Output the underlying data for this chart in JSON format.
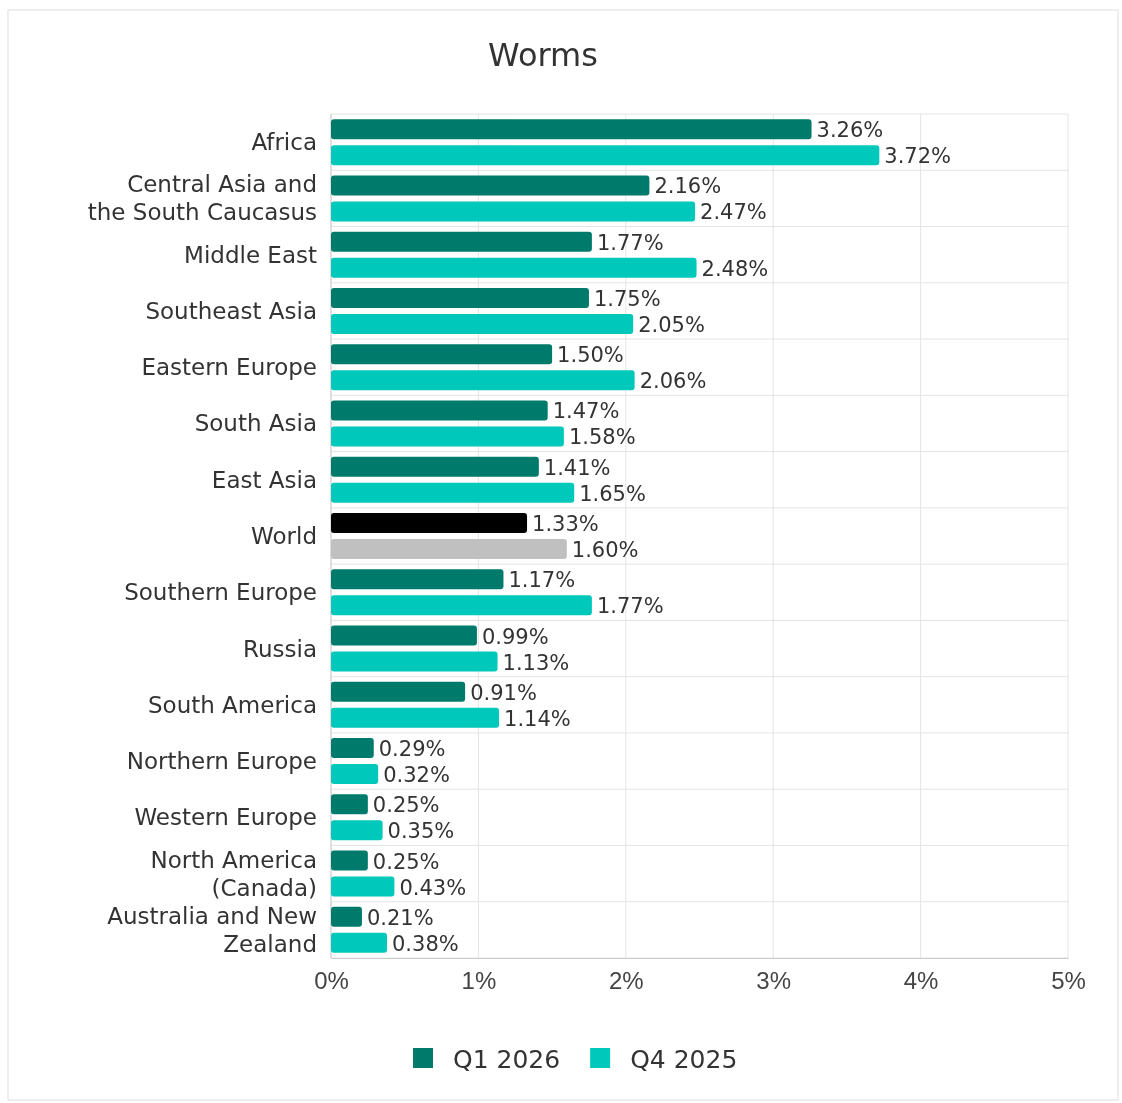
{
  "chart_data": {
    "type": "bar",
    "orientation": "horizontal",
    "title": "Worms",
    "categories": [
      "Africa",
      "Central Asia and the South Caucasus",
      "Middle East",
      "Southeast Asia",
      "Eastern Europe",
      "South Asia",
      "East Asia",
      "World",
      "Southern Europe",
      "Russia",
      "South America",
      "Northern Europe",
      "Western Europe",
      "North America (Canada)",
      "Australia and New Zealand"
    ],
    "series": [
      {
        "name": "Q1 2026",
        "color": "#007a6a",
        "colors": [
          "#007a6a",
          "#007a6a",
          "#007a6a",
          "#007a6a",
          "#007a6a",
          "#007a6a",
          "#007a6a",
          "#000000",
          "#007a6a",
          "#007a6a",
          "#007a6a",
          "#007a6a",
          "#007a6a",
          "#007a6a",
          "#007a6a"
        ],
        "values": [
          3.26,
          2.16,
          1.77,
          1.75,
          1.5,
          1.47,
          1.41,
          1.33,
          1.17,
          0.99,
          0.91,
          0.29,
          0.25,
          0.25,
          0.21
        ],
        "value_labels": [
          "3.26%",
          "2.16%",
          "1.77%",
          "1.75%",
          "1.50%",
          "1.47%",
          "1.41%",
          "1.33%",
          "1.17%",
          "0.99%",
          "0.91%",
          "0.29%",
          "0.25%",
          "0.25%",
          "0.21%"
        ]
      },
      {
        "name": "Q4 2025",
        "color": "#00c8bb",
        "colors": [
          "#00c8bb",
          "#00c8bb",
          "#00c8bb",
          "#00c8bb",
          "#00c8bb",
          "#00c8bb",
          "#00c8bb",
          "#c0c0c0",
          "#00c8bb",
          "#00c8bb",
          "#00c8bb",
          "#00c8bb",
          "#00c8bb",
          "#00c8bb",
          "#00c8bb"
        ],
        "values": [
          3.72,
          2.47,
          2.48,
          2.05,
          2.06,
          1.58,
          1.65,
          1.6,
          1.77,
          1.13,
          1.14,
          0.32,
          0.35,
          0.43,
          0.38
        ],
        "value_labels": [
          "3.72%",
          "2.47%",
          "2.48%",
          "2.05%",
          "2.06%",
          "1.58%",
          "1.65%",
          "1.60%",
          "1.77%",
          "1.13%",
          "1.14%",
          "0.32%",
          "0.35%",
          "0.43%",
          "0.38%"
        ]
      }
    ],
    "xlim": [
      0,
      5
    ],
    "xticks": [
      {
        "value": 0,
        "label": "0%"
      },
      {
        "value": 1,
        "label": "1%"
      },
      {
        "value": 2,
        "label": "2%"
      },
      {
        "value": 3,
        "label": "3%"
      },
      {
        "value": 4,
        "label": "4%"
      },
      {
        "value": 5,
        "label": "5%"
      }
    ],
    "grid": true,
    "legend": "bottom"
  }
}
